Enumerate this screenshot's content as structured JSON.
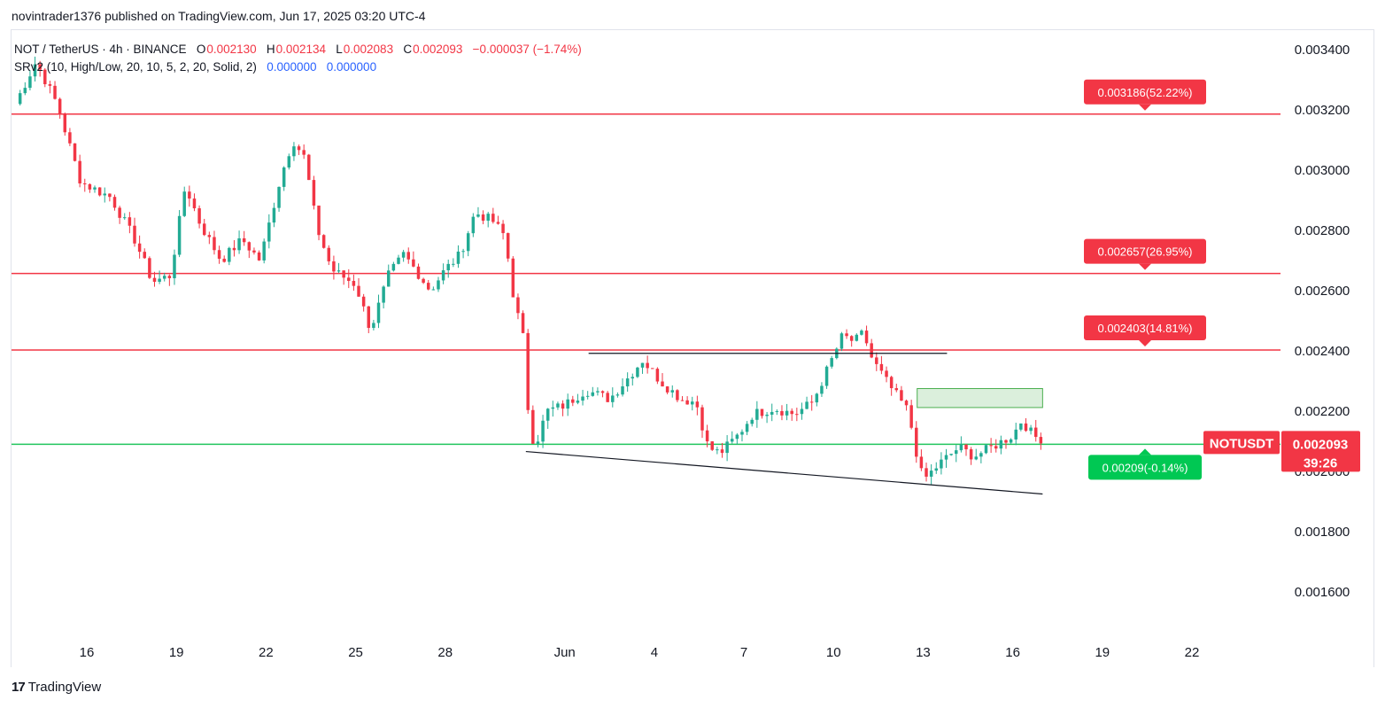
{
  "header": {
    "published": "novintrader1376 published on TradingView.com, Jun 17, 2025 03:20 UTC-4"
  },
  "legend": {
    "symbol": "NOT / TetherUS · 4h · BINANCE",
    "o_label": "O",
    "o_value": "0.002130",
    "h_label": "H",
    "h_value": "0.002134",
    "l_label": "L",
    "l_value": "0.002083",
    "c_label": "C",
    "c_value": "0.002093",
    "change": "−0.000037 (−1.74%)",
    "indicator": "SRv2 (10, High/Low, 20, 10, 5, 2, 20, Solid, 2)",
    "ind_val1": "0.000000",
    "ind_val2": "0.000000"
  },
  "footer": {
    "brand": "TradingView",
    "logo": "17"
  },
  "colors": {
    "up": "#22ab94",
    "down": "#f23645",
    "level": "#f23645",
    "support": "#22c55e",
    "trend": "#131722"
  },
  "chart_data": {
    "type": "candlestick",
    "title": "NOT / TetherUS · 4h · BINANCE",
    "ylim": [
      0.00145,
      0.00353
    ],
    "y_ticks": [
      "0.003400",
      "0.003200",
      "0.003000",
      "0.002800",
      "0.002600",
      "0.002400",
      "0.002200",
      "0.002000",
      "0.001800",
      "0.001600"
    ],
    "y_tick_values": [
      0.0034,
      0.0032,
      0.003,
      0.0028,
      0.0026,
      0.0024,
      0.0022,
      0.002,
      0.0018,
      0.0016
    ],
    "x_ticks": [
      "16",
      "19",
      "22",
      "25",
      "28",
      "Jun",
      "4",
      "7",
      "10",
      "13",
      "16",
      "19",
      "22"
    ],
    "x_tick_days": [
      16,
      19,
      22,
      25,
      28,
      32,
      35,
      38,
      41,
      44,
      47,
      50,
      53
    ],
    "x_range_days": [
      13.5,
      55.0
    ],
    "horizontal_levels": [
      {
        "price": 0.003186,
        "label": "0.003186(52.22%)",
        "color": "#f23645"
      },
      {
        "price": 0.002657,
        "label": "0.002657(26.95%)",
        "color": "#f23645"
      },
      {
        "price": 0.002403,
        "label": "0.002403(14.81%)",
        "color": "#f23645"
      },
      {
        "price": 0.00209,
        "label": "0.00209(-0.14%)",
        "color": "#22c55e"
      }
    ],
    "resistance_line": {
      "from_day": 32.8,
      "to_day": 44.8,
      "price": 0.002392
    },
    "trend_line": {
      "from_day": 30.7,
      "from_price": 0.002066,
      "to_day": 48.0,
      "to_price": 0.001925
    },
    "zone": {
      "from_day": 43.8,
      "to_day": 48.0,
      "low": 0.002212,
      "high": 0.002275
    },
    "last_price": {
      "symbol": "NOTUSDT",
      "price": "0.002093",
      "countdown": "39:26",
      "value": 0.002093
    },
    "anchors": [
      [
        13.6,
        0.00322
      ],
      [
        14.3,
        0.00336
      ],
      [
        15.0,
        0.00322
      ],
      [
        15.8,
        0.00296
      ],
      [
        16.8,
        0.00291
      ],
      [
        17.6,
        0.00277
      ],
      [
        18.2,
        0.00263
      ],
      [
        18.8,
        0.00265
      ],
      [
        19.3,
        0.00295
      ],
      [
        19.8,
        0.00282
      ],
      [
        20.5,
        0.0027
      ],
      [
        21.2,
        0.00277
      ],
      [
        21.8,
        0.0027
      ],
      [
        22.5,
        0.00298
      ],
      [
        22.9,
        0.0031
      ],
      [
        23.3,
        0.00304
      ],
      [
        23.7,
        0.00281
      ],
      [
        24.2,
        0.00267
      ],
      [
        25.0,
        0.00262
      ],
      [
        25.5,
        0.00247
      ],
      [
        26.1,
        0.00265
      ],
      [
        26.6,
        0.00272
      ],
      [
        27.0,
        0.00267
      ],
      [
        27.5,
        0.0026
      ],
      [
        28.0,
        0.00267
      ],
      [
        28.5,
        0.00272
      ],
      [
        29.0,
        0.00286
      ],
      [
        29.6,
        0.00283
      ],
      [
        30.0,
        0.00278
      ],
      [
        30.3,
        0.00257
      ],
      [
        30.6,
        0.00245
      ],
      [
        30.8,
        0.00217
      ],
      [
        31.0,
        0.00208
      ],
      [
        31.4,
        0.0022
      ],
      [
        32.0,
        0.00222
      ],
      [
        32.7,
        0.00227
      ],
      [
        33.5,
        0.00224
      ],
      [
        34.2,
        0.00232
      ],
      [
        34.6,
        0.00237
      ],
      [
        35.2,
        0.0023
      ],
      [
        35.9,
        0.00224
      ],
      [
        36.4,
        0.00223
      ],
      [
        36.8,
        0.00208
      ],
      [
        37.2,
        0.00206
      ],
      [
        37.8,
        0.00212
      ],
      [
        38.3,
        0.00219
      ],
      [
        39.0,
        0.00221
      ],
      [
        39.7,
        0.00219
      ],
      [
        40.3,
        0.00223
      ],
      [
        40.8,
        0.00234
      ],
      [
        41.3,
        0.00245
      ],
      [
        41.7,
        0.00243
      ],
      [
        42.0,
        0.00246
      ],
      [
        42.3,
        0.00237
      ],
      [
        42.9,
        0.00228
      ],
      [
        43.5,
        0.0022
      ],
      [
        43.8,
        0.00205
      ],
      [
        44.0,
        0.00197
      ],
      [
        44.6,
        0.00203
      ],
      [
        45.2,
        0.00208
      ],
      [
        45.7,
        0.00205
      ],
      [
        46.3,
        0.00208
      ],
      [
        47.0,
        0.00212
      ],
      [
        47.3,
        0.00217
      ],
      [
        47.6,
        0.00213
      ],
      [
        48.0,
        0.002093
      ]
    ],
    "candle_step_days": 0.1667
  }
}
